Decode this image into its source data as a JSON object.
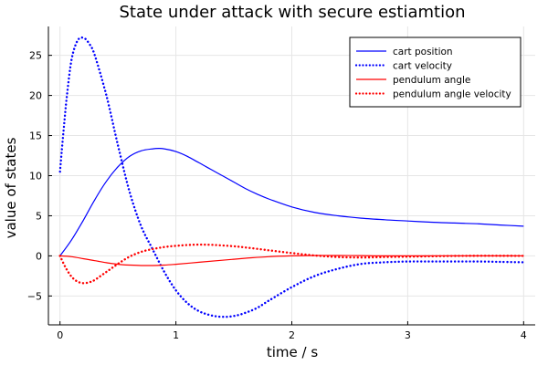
{
  "chart_data": {
    "type": "line",
    "title": "State under attack with secure estiamtion",
    "xlabel": "time / s",
    "ylabel": "value of states",
    "xlim": [
      -0.1,
      4.1
    ],
    "ylim": [
      -8.6,
      28.6
    ],
    "x_ticks": [
      0,
      1,
      2,
      3,
      4
    ],
    "x_tick_labels": [
      "0",
      "1",
      "2",
      "3",
      "4"
    ],
    "y_ticks": [
      -5,
      0,
      5,
      10,
      15,
      20,
      25
    ],
    "y_tick_labels": [
      "−5",
      "0",
      "5",
      "10",
      "15",
      "20",
      "25"
    ],
    "grid": true,
    "legend_position": "top-right",
    "series": [
      {
        "name": "cart position",
        "color": "#0000ff",
        "style": "solid",
        "x": [
          0,
          0.1,
          0.2,
          0.3,
          0.4,
          0.5,
          0.6,
          0.7,
          0.8,
          0.85,
          0.9,
          1.0,
          1.1,
          1.2,
          1.3,
          1.4,
          1.5,
          1.6,
          1.7,
          1.8,
          2.0,
          2.2,
          2.4,
          2.6,
          2.8,
          3.0,
          3.2,
          3.4,
          3.6,
          3.8,
          4.0
        ],
        "y": [
          0,
          2.0,
          4.4,
          7.0,
          9.3,
          11.1,
          12.4,
          13.1,
          13.35,
          13.4,
          13.35,
          13.0,
          12.4,
          11.6,
          10.8,
          10.0,
          9.2,
          8.4,
          7.7,
          7.1,
          6.1,
          5.4,
          5.0,
          4.7,
          4.5,
          4.35,
          4.2,
          4.1,
          4.0,
          3.85,
          3.7
        ]
      },
      {
        "name": "cart velocity",
        "color": "#0000ff",
        "style": "dotted",
        "x": [
          0,
          0.03,
          0.06,
          0.1,
          0.15,
          0.2,
          0.25,
          0.3,
          0.4,
          0.5,
          0.6,
          0.7,
          0.8,
          0.9,
          1.0,
          1.1,
          1.2,
          1.3,
          1.4,
          1.5,
          1.6,
          1.7,
          1.8,
          2.0,
          2.2,
          2.4,
          2.6,
          2.8,
          3.0,
          3.2,
          3.4,
          3.6,
          3.8,
          4.0
        ],
        "y": [
          10.5,
          15.5,
          20.0,
          24.5,
          26.8,
          27.2,
          26.5,
          25.0,
          20.0,
          13.8,
          8.0,
          3.7,
          0.8,
          -2.0,
          -4.3,
          -5.9,
          -6.9,
          -7.4,
          -7.6,
          -7.5,
          -7.1,
          -6.5,
          -5.6,
          -3.9,
          -2.5,
          -1.6,
          -1.0,
          -0.8,
          -0.7,
          -0.7,
          -0.7,
          -0.7,
          -0.75,
          -0.8
        ]
      },
      {
        "name": "pendulum angle",
        "color": "#ff0000",
        "style": "solid",
        "x": [
          0,
          0.1,
          0.2,
          0.3,
          0.4,
          0.5,
          0.6,
          0.7,
          0.8,
          0.9,
          1.0,
          1.2,
          1.4,
          1.6,
          1.8,
          2.0,
          2.2,
          2.4,
          2.6,
          2.8,
          3.0,
          3.2,
          3.4,
          3.6,
          3.8,
          4.0
        ],
        "y": [
          0,
          -0.1,
          -0.35,
          -0.6,
          -0.85,
          -1.05,
          -1.15,
          -1.2,
          -1.2,
          -1.15,
          -1.05,
          -0.8,
          -0.55,
          -0.3,
          -0.1,
          0.0,
          0.05,
          0.05,
          0.03,
          0.0,
          0.0,
          0.0,
          0.0,
          0.0,
          0.0,
          0.0
        ]
      },
      {
        "name": "pendulum angle velocity",
        "color": "#ff0000",
        "style": "dotted",
        "x": [
          0,
          0.05,
          0.1,
          0.15,
          0.2,
          0.25,
          0.3,
          0.4,
          0.5,
          0.6,
          0.7,
          0.8,
          0.9,
          1.0,
          1.1,
          1.2,
          1.3,
          1.4,
          1.5,
          1.6,
          1.8,
          2.0,
          2.2,
          2.4,
          2.6,
          2.8,
          3.0,
          3.5,
          4.0
        ],
        "y": [
          0,
          -1.5,
          -2.6,
          -3.2,
          -3.4,
          -3.3,
          -3.0,
          -2.0,
          -1.0,
          -0.1,
          0.5,
          0.85,
          1.1,
          1.25,
          1.35,
          1.4,
          1.38,
          1.3,
          1.2,
          1.05,
          0.7,
          0.35,
          0.05,
          -0.15,
          -0.2,
          -0.15,
          -0.1,
          0.0,
          0.0
        ]
      }
    ]
  }
}
